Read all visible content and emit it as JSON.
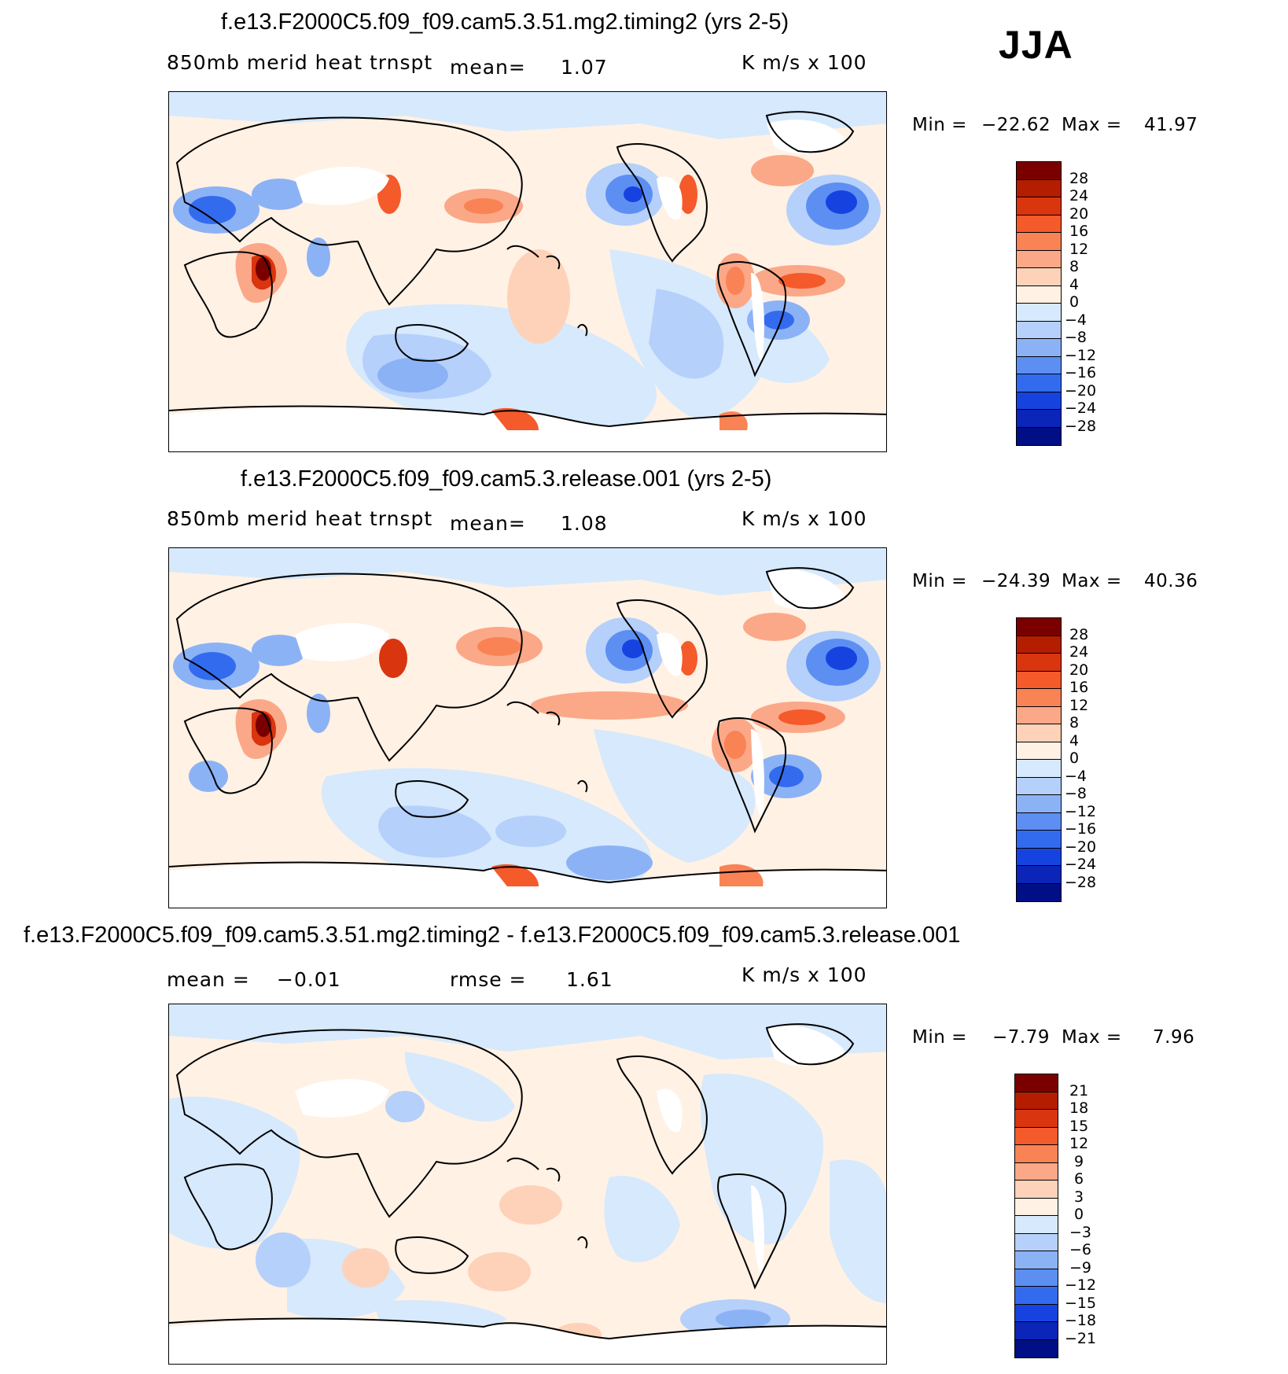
{
  "season": "JJA",
  "colors": {
    "land_outline": "#000000",
    "background": "#ffffff"
  },
  "chart_data": [
    {
      "type": "heatmap",
      "title": "f.e13.F2000C5.f09_f09.cam5.3.51.mg2.timing2 (yrs 2-5)",
      "variable": "850mb  merid  heat  trnspt",
      "mean_label": "mean=",
      "mean_value": "1.07",
      "units": "K  m/s  x  100",
      "min_label": "Min  =",
      "min_value": "−22.62",
      "max_label": "Max  =",
      "max_value": "41.97",
      "colorbar": {
        "labels": [
          "28",
          "24",
          "20",
          "16",
          "12",
          "8",
          "4",
          "0",
          "−4",
          "−8",
          "−12",
          "−16",
          "−20",
          "−24",
          "−28"
        ],
        "colors": [
          "#7a0000",
          "#b51d00",
          "#d9350e",
          "#f55a2a",
          "#f98355",
          "#fba888",
          "#fdd2b8",
          "#fff1e4",
          "#d6e9fd",
          "#b5d0fa",
          "#8cb2f6",
          "#5d8ff3",
          "#336bef",
          "#1643e0",
          "#0a25b8",
          "#000f85"
        ]
      }
    },
    {
      "type": "heatmap",
      "title": "f.e13.F2000C5.f09_f09.cam5.3.release.001 (yrs 2-5)",
      "variable": "850mb  merid  heat  trnspt",
      "mean_label": "mean=",
      "mean_value": "1.08",
      "units": "K  m/s  x  100",
      "min_label": "Min  =",
      "min_value": "−24.39",
      "max_label": "Max  =",
      "max_value": "40.36",
      "colorbar": {
        "labels": [
          "28",
          "24",
          "20",
          "16",
          "12",
          "8",
          "4",
          "0",
          "−4",
          "−8",
          "−12",
          "−16",
          "−20",
          "−24",
          "−28"
        ],
        "colors": [
          "#7a0000",
          "#b51d00",
          "#d9350e",
          "#f55a2a",
          "#f98355",
          "#fba888",
          "#fdd2b8",
          "#fff1e4",
          "#d6e9fd",
          "#b5d0fa",
          "#8cb2f6",
          "#5d8ff3",
          "#336bef",
          "#1643e0",
          "#0a25b8",
          "#000f85"
        ]
      }
    },
    {
      "type": "heatmap",
      "title": "f.e13.F2000C5.f09_f09.cam5.3.51.mg2.timing2 - f.e13.F2000C5.f09_f09.cam5.3.release.001",
      "mean_label": "mean  =",
      "mean_value": "−0.01",
      "rmse_label": "rmse  =",
      "rmse_value": "1.61",
      "units": "K  m/s  x  100",
      "min_label": "Min  =",
      "min_value": "−7.79",
      "max_label": "Max  =",
      "max_value": "7.96",
      "colorbar": {
        "labels": [
          "21",
          "18",
          "15",
          "12",
          "9",
          "6",
          "3",
          "0",
          "−3",
          "−6",
          "−9",
          "−12",
          "−15",
          "−18",
          "−21"
        ],
        "colors": [
          "#7a0000",
          "#b51d00",
          "#d9350e",
          "#f55a2a",
          "#f98355",
          "#fba888",
          "#fdd2b8",
          "#fff1e4",
          "#d6e9fd",
          "#b5d0fa",
          "#8cb2f6",
          "#5d8ff3",
          "#336bef",
          "#1643e0",
          "#0a25b8",
          "#000f85"
        ]
      }
    }
  ]
}
